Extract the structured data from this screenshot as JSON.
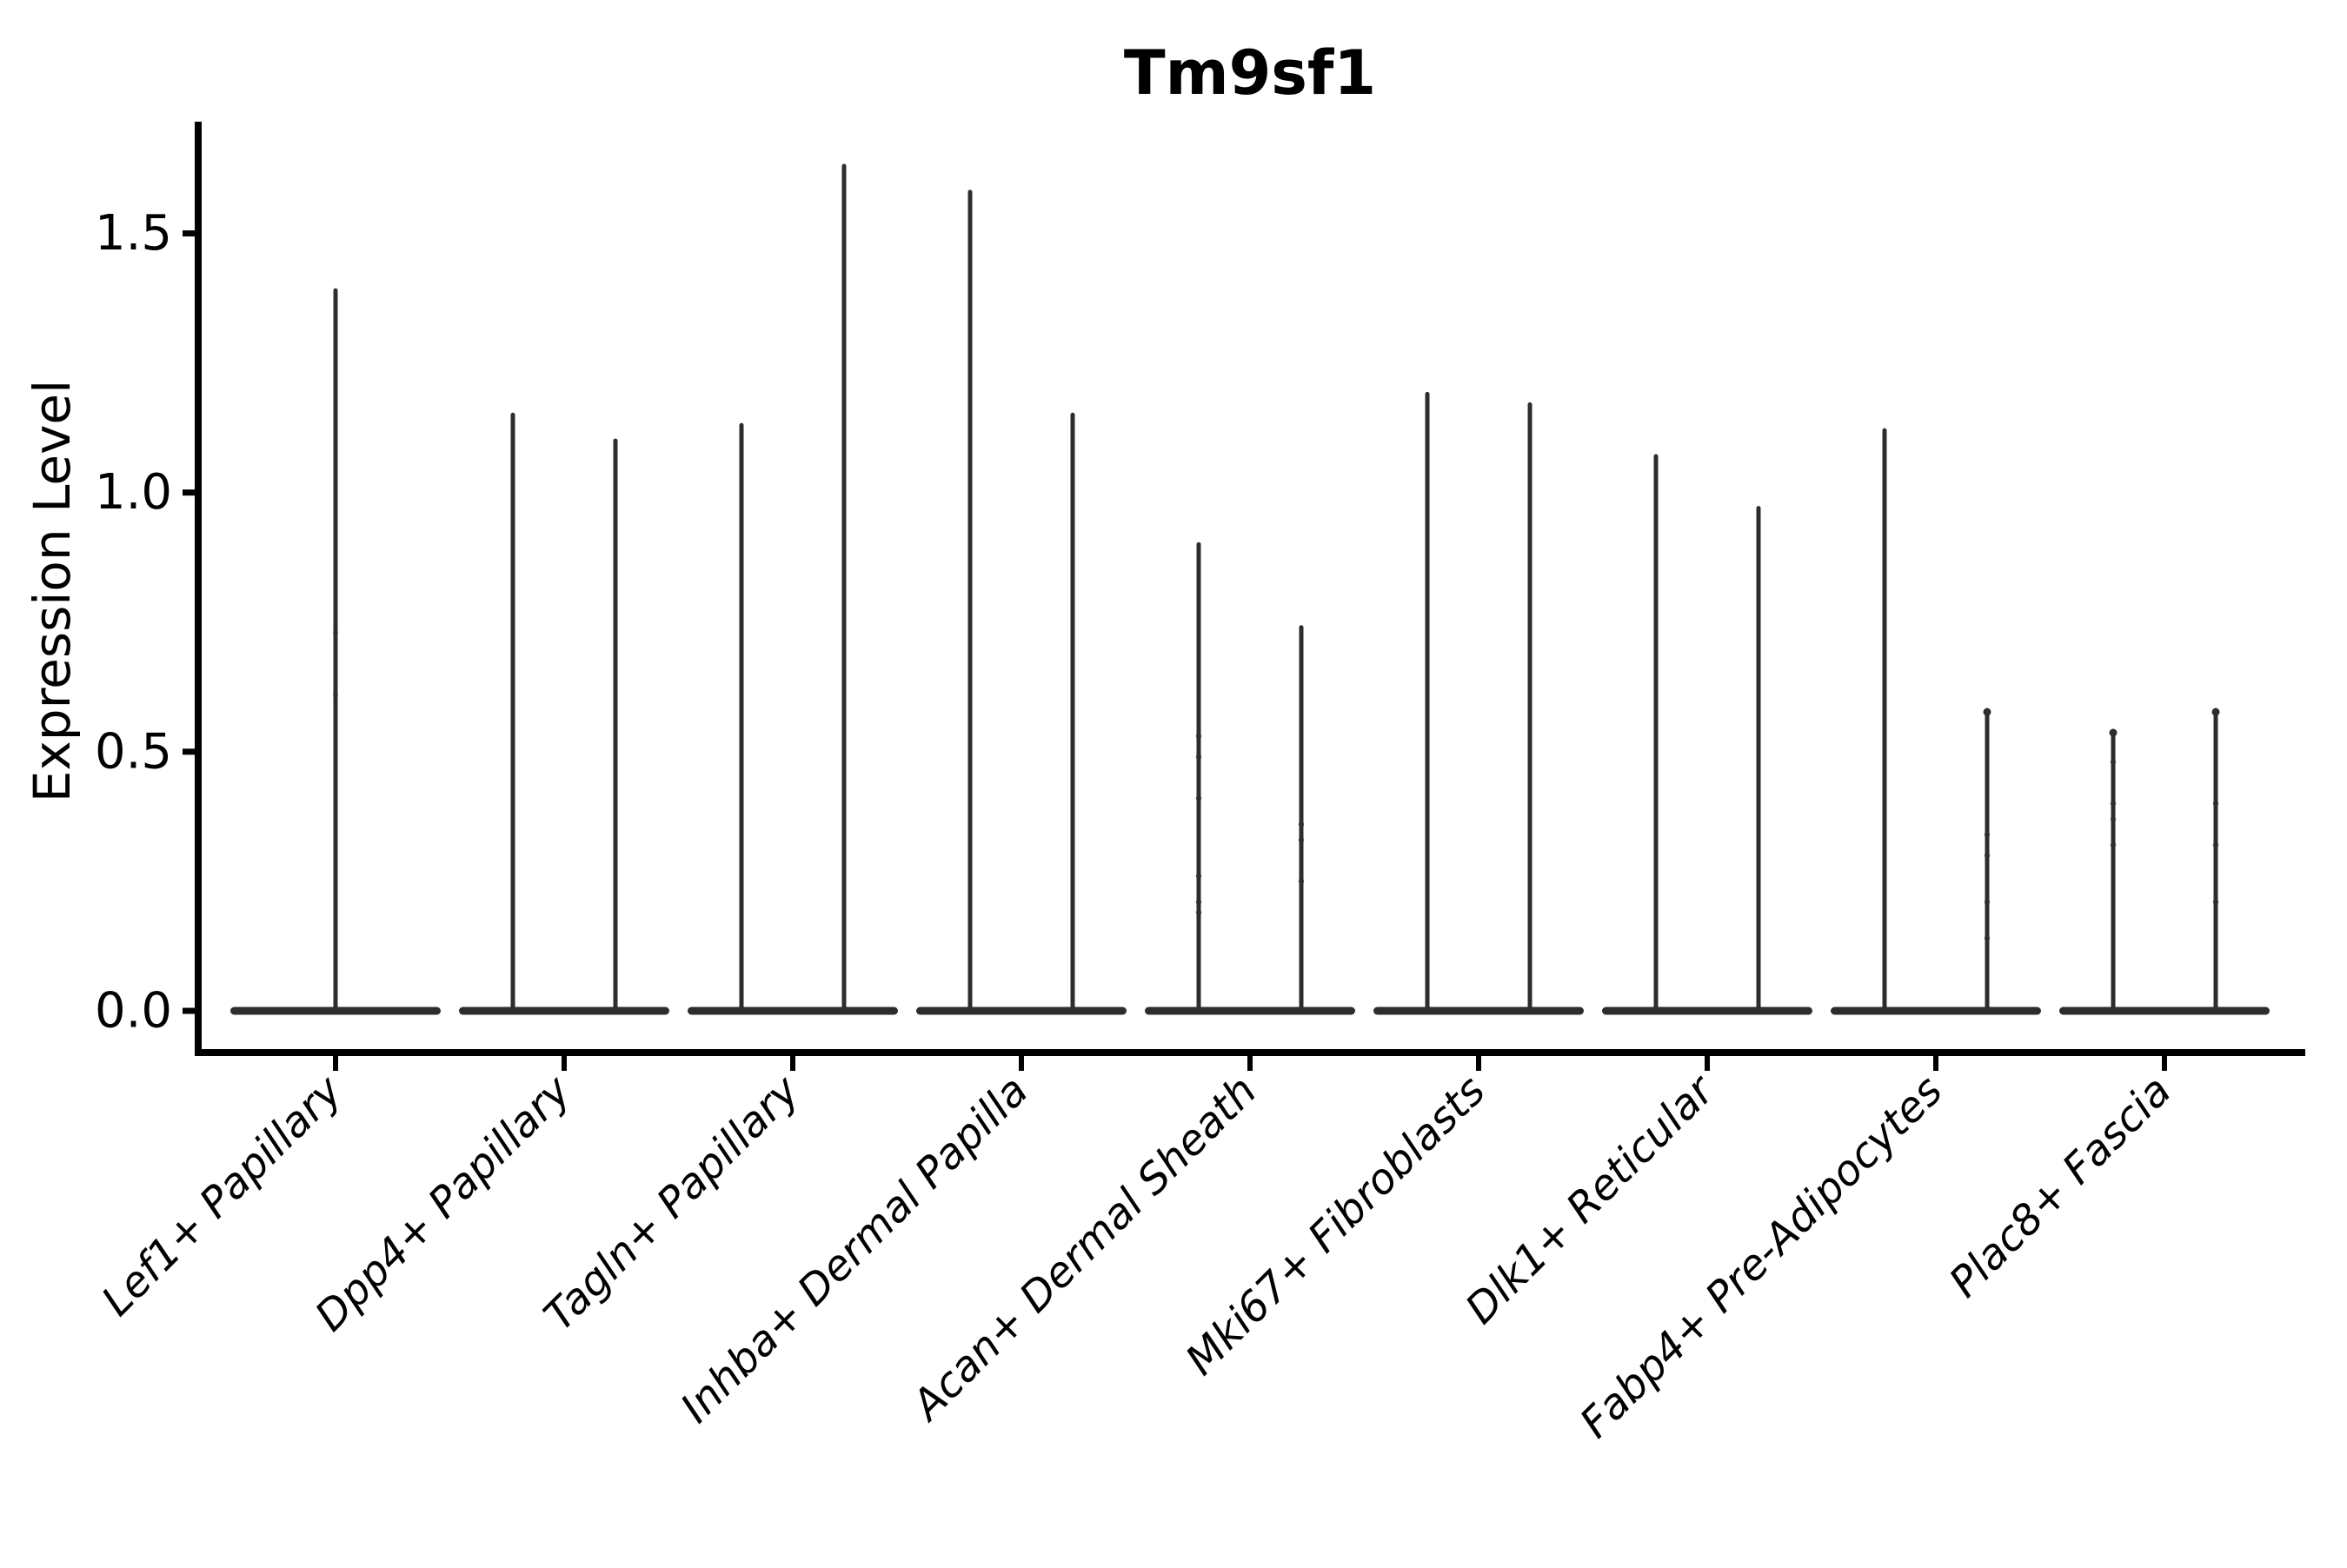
{
  "figure": {
    "background": "#ffffff"
  },
  "chart_data": {
    "type": "violin",
    "title": "Tm9sf1",
    "xlabel": "",
    "ylabel": "Expression Level",
    "ylim": [
      -0.08,
      1.72
    ],
    "yticks": [
      0.0,
      0.5,
      1.0,
      1.5
    ],
    "ytick_labels": [
      "0.0",
      "0.5",
      "1.0",
      "1.5"
    ],
    "grid": false,
    "legend": "none",
    "categories": [
      "Lef1+ Papillary",
      "Dpp4+ Papillary",
      "Tagln+ Papillary",
      "Inhba+ Dermal Papilla",
      "Acan+ Dermal Sheath",
      "Mki67+ Fibroblasts",
      "Dlk1+ Reticular",
      "Fabp4+ Pre-Adipocytes",
      "Plac8+ Fascia"
    ],
    "violins": [
      {
        "category": "Lef1+ Papillary",
        "spikes": [
          {
            "pos": "center",
            "max": 1.39,
            "dots": [
              0.61,
              0.73
            ],
            "faint_dots": true
          }
        ]
      },
      {
        "category": "Dpp4+ Papillary",
        "spikes": [
          {
            "pos": "left",
            "max": 1.15
          },
          {
            "pos": "right",
            "max": 1.1
          }
        ]
      },
      {
        "category": "Tagln+ Papillary",
        "spikes": [
          {
            "pos": "left",
            "max": 1.13
          },
          {
            "pos": "right",
            "max": 1.63
          }
        ]
      },
      {
        "category": "Inhba+ Dermal Papilla",
        "spikes": [
          {
            "pos": "left",
            "max": 1.58
          },
          {
            "pos": "right",
            "max": 1.15
          }
        ]
      },
      {
        "category": "Acan+ Dermal Sheath",
        "spikes": [
          {
            "pos": "left",
            "max": 0.9,
            "dots": [
              0.19,
              0.21,
              0.26,
              0.41,
              0.49,
              0.53
            ]
          },
          {
            "pos": "right",
            "max": 0.74,
            "dots": [
              0.25,
              0.33,
              0.36
            ]
          }
        ]
      },
      {
        "category": "Mki67+ Fibroblasts",
        "spikes": [
          {
            "pos": "left",
            "max": 1.19
          },
          {
            "pos": "right",
            "max": 1.17
          }
        ]
      },
      {
        "category": "Dlk1+ Reticular",
        "spikes": [
          {
            "pos": "left",
            "max": 1.07
          },
          {
            "pos": "right",
            "max": 0.97
          }
        ]
      },
      {
        "category": "Fabp4+ Pre-Adipocytes",
        "spikes": [
          {
            "pos": "left",
            "max": 1.12
          },
          {
            "pos": "right",
            "max": 0.58,
            "dots": [
              0.14,
              0.21,
              0.3,
              0.34
            ],
            "top_knob": true
          }
        ]
      },
      {
        "category": "Plac8+ Fascia",
        "spikes": [
          {
            "pos": "left",
            "max": 0.54,
            "dots": [
              0.32,
              0.37,
              0.4,
              0.48
            ],
            "top_knob": true
          },
          {
            "pos": "right",
            "max": 0.58,
            "dots": [
              0.21,
              0.32,
              0.4
            ],
            "top_knob": true
          }
        ]
      }
    ],
    "colors": {
      "violin_ink": "#2d2d2d",
      "axis": "#000000",
      "text": "#000000"
    }
  }
}
